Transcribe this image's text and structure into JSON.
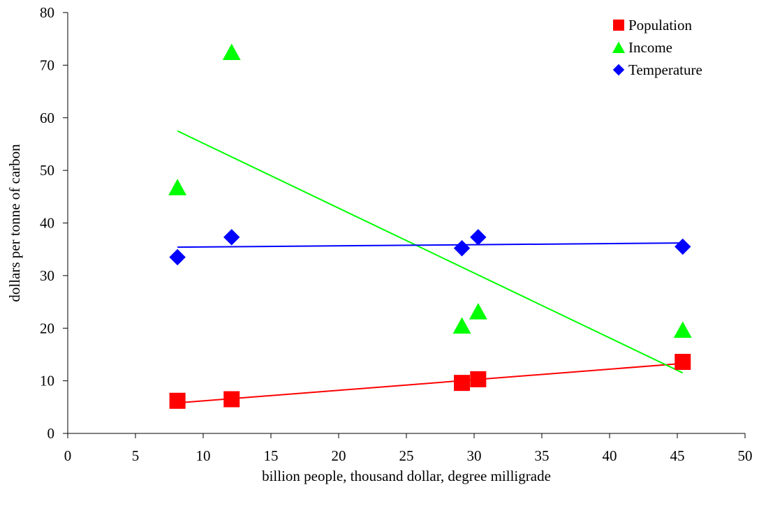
{
  "chart_data": {
    "type": "scatter",
    "xlabel": "billion people, thousand dollar, degree milligrade",
    "ylabel": "dollars per tonne of carbon",
    "xlim": [
      0,
      50
    ],
    "ylim": [
      0,
      80
    ],
    "x_ticks": [
      0,
      5,
      10,
      15,
      20,
      25,
      30,
      35,
      40,
      45,
      50
    ],
    "y_ticks": [
      0,
      10,
      20,
      30,
      40,
      50,
      60,
      70,
      80
    ],
    "grid": false,
    "legend_position": "top-right",
    "series": [
      {
        "name": "Population",
        "marker": "square",
        "color": "#ff0000",
        "points": [
          [
            8.1,
            6.2
          ],
          [
            12.1,
            6.5
          ],
          [
            29.1,
            9.6
          ],
          [
            30.3,
            10.3
          ],
          [
            45.4,
            13.6
          ]
        ],
        "trendline": [
          [
            8.1,
            5.8
          ],
          [
            45.4,
            13.3
          ]
        ]
      },
      {
        "name": "Income",
        "marker": "triangle",
        "color": "#00ff00",
        "points": [
          [
            8.1,
            46.8
          ],
          [
            12.1,
            72.5
          ],
          [
            29.1,
            20.5
          ],
          [
            30.3,
            23.2
          ],
          [
            45.4,
            19.7
          ]
        ],
        "trendline": [
          [
            8.1,
            57.5
          ],
          [
            45.4,
            11.5
          ]
        ]
      },
      {
        "name": "Temperature",
        "marker": "diamond",
        "color": "#0000ff",
        "points": [
          [
            8.1,
            33.5
          ],
          [
            12.1,
            37.3
          ],
          [
            29.1,
            35.2
          ],
          [
            30.3,
            37.3
          ],
          [
            45.4,
            35.5
          ]
        ],
        "trendline": [
          [
            8.1,
            35.4
          ],
          [
            45.4,
            36.2
          ]
        ]
      }
    ]
  }
}
